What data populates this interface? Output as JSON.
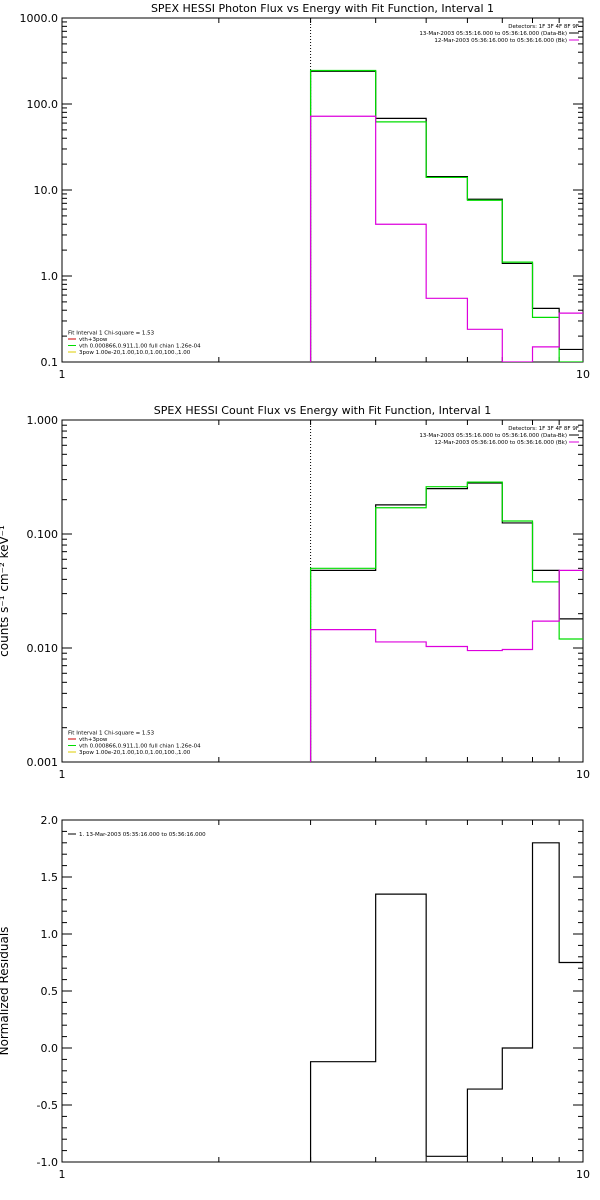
{
  "chart_data": [
    {
      "type": "line",
      "title": "SPEX HESSI Photon Flux vs Energy with Fit Function, Interval 1",
      "xlabel": "",
      "ylabel": "",
      "x_scale": "log",
      "y_scale": "log",
      "xlim": [
        1,
        10
      ],
      "ylim": [
        0.1,
        1000
      ],
      "x_ticks": [
        "1",
        "10"
      ],
      "y_ticks": [
        "0.1",
        "1.0",
        "10.0",
        "100.0",
        "1000.0"
      ],
      "marker_line_x": 3.0,
      "bin_edges": [
        3.0,
        4.0,
        5.0,
        6.0,
        7.0,
        8.0,
        9.0,
        10.0
      ],
      "series": [
        {
          "color": "#000000",
          "values": [
            240,
            68,
            14.3,
            7.8,
            1.4,
            0.42,
            0.14
          ]
        },
        {
          "color": "#00dd00",
          "values": [
            245,
            62,
            14.0,
            7.6,
            1.45,
            0.33,
            0.1
          ]
        },
        {
          "color": "#dd00dd",
          "values": [
            72,
            4.0,
            0.55,
            0.24,
            0.1,
            0.15,
            0.37
          ]
        }
      ],
      "annotations_right": [
        {
          "text": "Detectors: 1F 3F 4F 8F 9F",
          "color": "#000000"
        },
        {
          "text": "13-Mar-2003 05:35:16.000 to 05:36:16.000 (Data-Bk)",
          "color": "#000000",
          "line": "#000000"
        },
        {
          "text": "12-Mar-2003 05:36:16.000 to 05:36:16.000 (Bk)",
          "color": "#000000",
          "line": "#dd00dd"
        }
      ],
      "legend_left": [
        {
          "text": "Fit Interval 1    Chi-square = 1.53",
          "line": null
        },
        {
          "text": "vth+3pow",
          "line": "#cc0000"
        },
        {
          "text": "vth 0.000866,0.911,1.00  full chian 1.26e-04",
          "line": "#00dd00"
        },
        {
          "text": "3pow 1.00e-20,1.00,10.0,1.00,100.,1.00",
          "line": "#ddcc00"
        }
      ]
    },
    {
      "type": "line",
      "title": "SPEX HESSI Count Flux vs Energy with Fit Function, Interval 1",
      "xlabel": "",
      "ylabel": "counts s⁻¹ cm⁻² keV⁻¹",
      "x_scale": "log",
      "y_scale": "log",
      "xlim": [
        1,
        10
      ],
      "ylim": [
        0.001,
        1.0
      ],
      "x_ticks": [
        "1",
        "10"
      ],
      "y_ticks": [
        "0.001",
        "0.010",
        "0.100",
        "1.000"
      ],
      "marker_line_x": 3.0,
      "bin_edges": [
        3.0,
        4.0,
        5.0,
        6.0,
        7.0,
        8.0,
        9.0,
        10.0
      ],
      "series": [
        {
          "color": "#000000",
          "values": [
            0.048,
            0.18,
            0.25,
            0.28,
            0.125,
            0.048,
            0.018
          ]
        },
        {
          "color": "#00dd00",
          "values": [
            0.05,
            0.17,
            0.26,
            0.285,
            0.13,
            0.038,
            0.012
          ]
        },
        {
          "color": "#dd00dd",
          "values": [
            0.0145,
            0.0113,
            0.0103,
            0.0095,
            0.0097,
            0.0172,
            0.048
          ]
        }
      ],
      "annotations_right": [
        {
          "text": "Detectors: 1F 3F 4F 8F 9F",
          "color": "#000000"
        },
        {
          "text": "13-Mar-2003 05:35:16.000 to 05:36:16.000 (Data-Bk)",
          "color": "#000000",
          "line": "#000000"
        },
        {
          "text": "12-Mar-2003 05:36:16.000 to 05:36:16.000 (Bk)",
          "color": "#000000",
          "line": "#dd00dd"
        }
      ],
      "legend_left": [
        {
          "text": "Fit Interval 1    Chi-square = 1.53",
          "line": null
        },
        {
          "text": "vth+3pow",
          "line": "#cc0000"
        },
        {
          "text": "vth 0.000866,0.911,1.00  full chian 1.26e-04",
          "line": "#00dd00"
        },
        {
          "text": "3pow 1.00e-20,1.00,10.0,1.00,100.,1.00",
          "line": "#ddcc00"
        }
      ]
    },
    {
      "type": "line",
      "title": "",
      "xlabel": "",
      "ylabel": "Normalized Residuals",
      "x_scale": "log",
      "y_scale": "linear",
      "xlim": [
        1,
        10
      ],
      "ylim": [
        -1.0,
        2.0
      ],
      "x_ticks": [
        "1",
        "10"
      ],
      "y_ticks": [
        "-1.0",
        "-0.5",
        "0.0",
        "0.5",
        "1.0",
        "1.5",
        "2.0"
      ],
      "bin_edges": [
        3.0,
        4.0,
        5.0,
        6.0,
        7.0,
        8.0,
        9.0,
        10.0
      ],
      "series": [
        {
          "color": "#000000",
          "values": [
            -0.12,
            1.35,
            -0.95,
            -0.36,
            0.0,
            1.8,
            0.75
          ]
        }
      ],
      "legend_left": [
        {
          "text": "1. 13-Mar-2003 05:35:16.000 to 05:36:16.000",
          "line": "#000000"
        }
      ]
    }
  ]
}
